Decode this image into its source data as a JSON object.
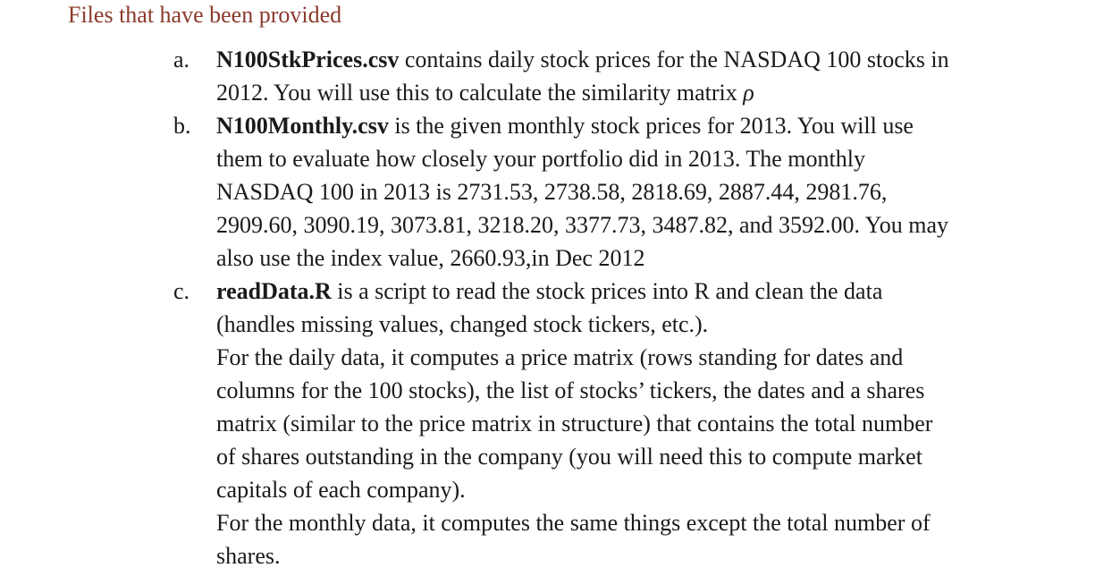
{
  "heading": "Files that have been provided",
  "items": [
    {
      "marker": "a.",
      "filename": "N100StkPrices.csv",
      "lines": [
        " contains daily stock prices for the NASDAQ 100 stocks in",
        "2012. You will use this to calculate the similarity matrix ",
        "ρ"
      ]
    },
    {
      "marker": "b.",
      "filename": "N100Monthly.csv",
      "lines": [
        " is the given monthly stock prices for 2013. You will use",
        "them to evaluate how closely your portfolio did in 2013. The monthly",
        "NASDAQ 100 in 2013 is 2731.53, 2738.58, 2818.69, 2887.44, 2981.76,",
        "2909.60, 3090.19, 3073.81, 3218.20, 3377.73, 3487.82, and 3592.00. You may",
        "also use the index value, 2660.93,in Dec 2012"
      ]
    },
    {
      "marker": "c.",
      "filename": "readData.R",
      "lines": [
        " is a script to read the stock prices into R and clean the data",
        "(handles missing values, changed stock tickers, etc.).",
        "For the daily data, it computes a price matrix (rows standing for dates and",
        "columns for the 100 stocks), the list of stocks’ tickers, the dates and a shares",
        "matrix (similar to the price matrix in structure) that contains the total number",
        "of shares outstanding in the company (you will need this to compute market",
        "capitals of each company).",
        "For the monthly data, it computes the same things except the total number of",
        "shares."
      ]
    }
  ]
}
